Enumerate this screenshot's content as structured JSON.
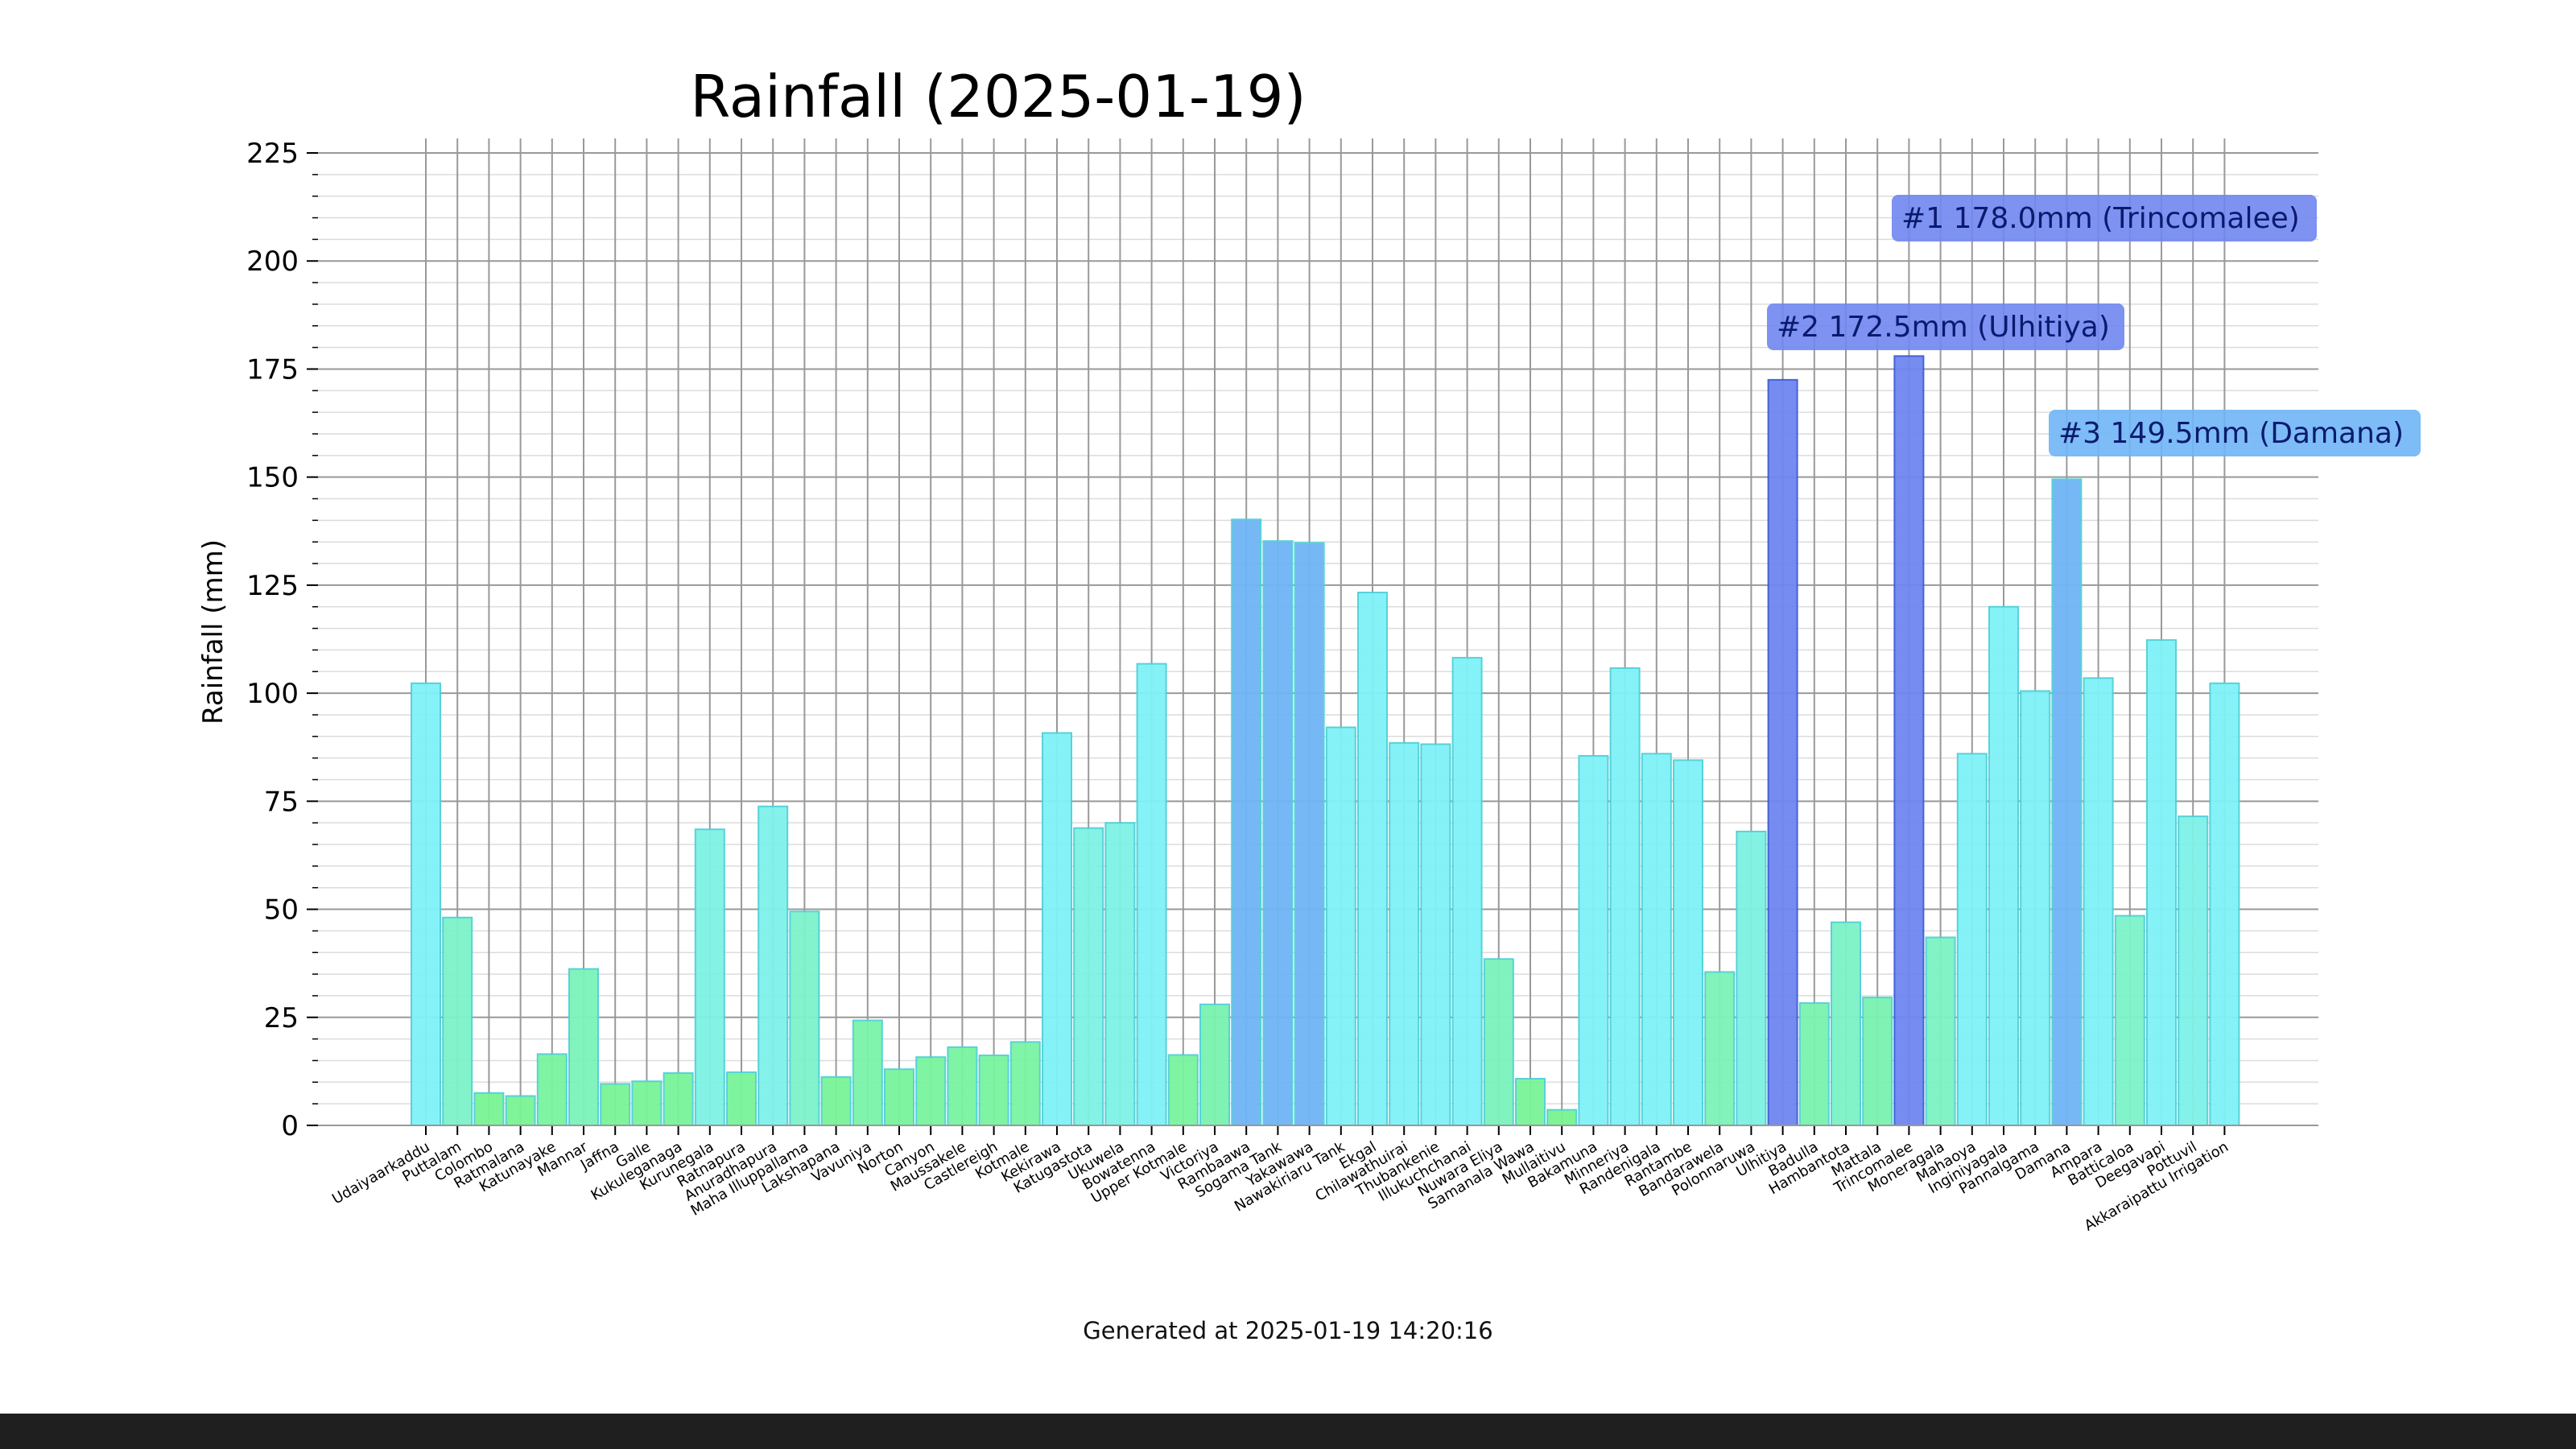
{
  "chart_data": {
    "type": "bar",
    "title": "Rainfall (2025-01-19)",
    "xlabel": "",
    "ylabel": "Rainfall (mm)",
    "ylim": [
      0,
      225
    ],
    "yticks": [
      0,
      25,
      50,
      75,
      100,
      125,
      150,
      175,
      200,
      225
    ],
    "grid": true,
    "categories": [
      "Udaiyaarkaddu",
      "Puttalam",
      "Colombo",
      "Ratmalana",
      "Katunayake",
      "Mannar",
      "Jaffna",
      "Galle",
      "Kukuleganaga",
      "Kurunegala",
      "Ratnapura",
      "Anuradhapura",
      "Maha Illuppallama",
      "Lakshapana",
      "Vavuniya",
      "Norton",
      "Canyon",
      "Maussakele",
      "Castlereigh",
      "Kotmale",
      "Kekirawa",
      "Katugastota",
      "Ukuwela",
      "Bowatenna",
      "Upper Kotmale",
      "Victoriya",
      "Rambaawa",
      "Sogama Tank",
      "Yakawawa",
      "Nawakiriaru Tank",
      "Ekgal",
      "Chilawathuirai",
      "Thubankenie",
      "Illukuchchanai",
      "Nuwara Eliya",
      "Samanala Wawa",
      "Mullaitivu",
      "Bakamuna",
      "Minneriya",
      "Randenigala",
      "Rantambe",
      "Bandarawela",
      "Polonnaruwa",
      "Ulhitiya",
      "Badulla",
      "Hambantota",
      "Mattala",
      "Trincomalee",
      "Moneragala",
      "Mahaoya",
      "Inginiyagala",
      "Pannalgama",
      "Damana",
      "Ampara",
      "Batticaloa",
      "Deegavapi",
      "Pottuvil",
      "Akkaraipattu Irrigation"
    ],
    "values": [
      102.3,
      48.1,
      7.5,
      6.8,
      16.5,
      36.2,
      9.6,
      10.2,
      12.1,
      68.5,
      12.3,
      73.8,
      49.5,
      11.2,
      24.3,
      13.0,
      15.8,
      18.1,
      16.2,
      19.3,
      90.8,
      68.8,
      70.0,
      106.8,
      16.3,
      28.0,
      140.2,
      135.2,
      134.8,
      92.1,
      123.3,
      88.5,
      88.2,
      108.2,
      38.5,
      10.8,
      3.6,
      85.5,
      105.8,
      86.0,
      84.5,
      35.5,
      68.0,
      172.5,
      28.3,
      47.0,
      29.6,
      178.0,
      43.5,
      86.0,
      120.0,
      100.5,
      149.5,
      103.5,
      48.5,
      112.3,
      71.5,
      102.3
    ],
    "annotations": [
      {
        "text": "#1 178.0mm (Trincomalee)",
        "category": "Trincomalee",
        "value": 178.0,
        "color": "#6f86f0"
      },
      {
        "text": "#2 172.5mm (Ulhitiya)",
        "category": "Ulhitiya",
        "value": 172.5,
        "color": "#6f86f0"
      },
      {
        "text": "#3 149.5mm (Damana)",
        "category": "Damana",
        "value": 149.5,
        "color": "#6fb5f5"
      }
    ]
  },
  "footer": {
    "generated": "Generated at 2025-01-19 14:20:16"
  },
  "colors": {
    "low": "#78f48a",
    "high": "#7ff2f8",
    "top2": "#6f86f0",
    "top3": "#6fb5f5",
    "grid": "#999999"
  }
}
